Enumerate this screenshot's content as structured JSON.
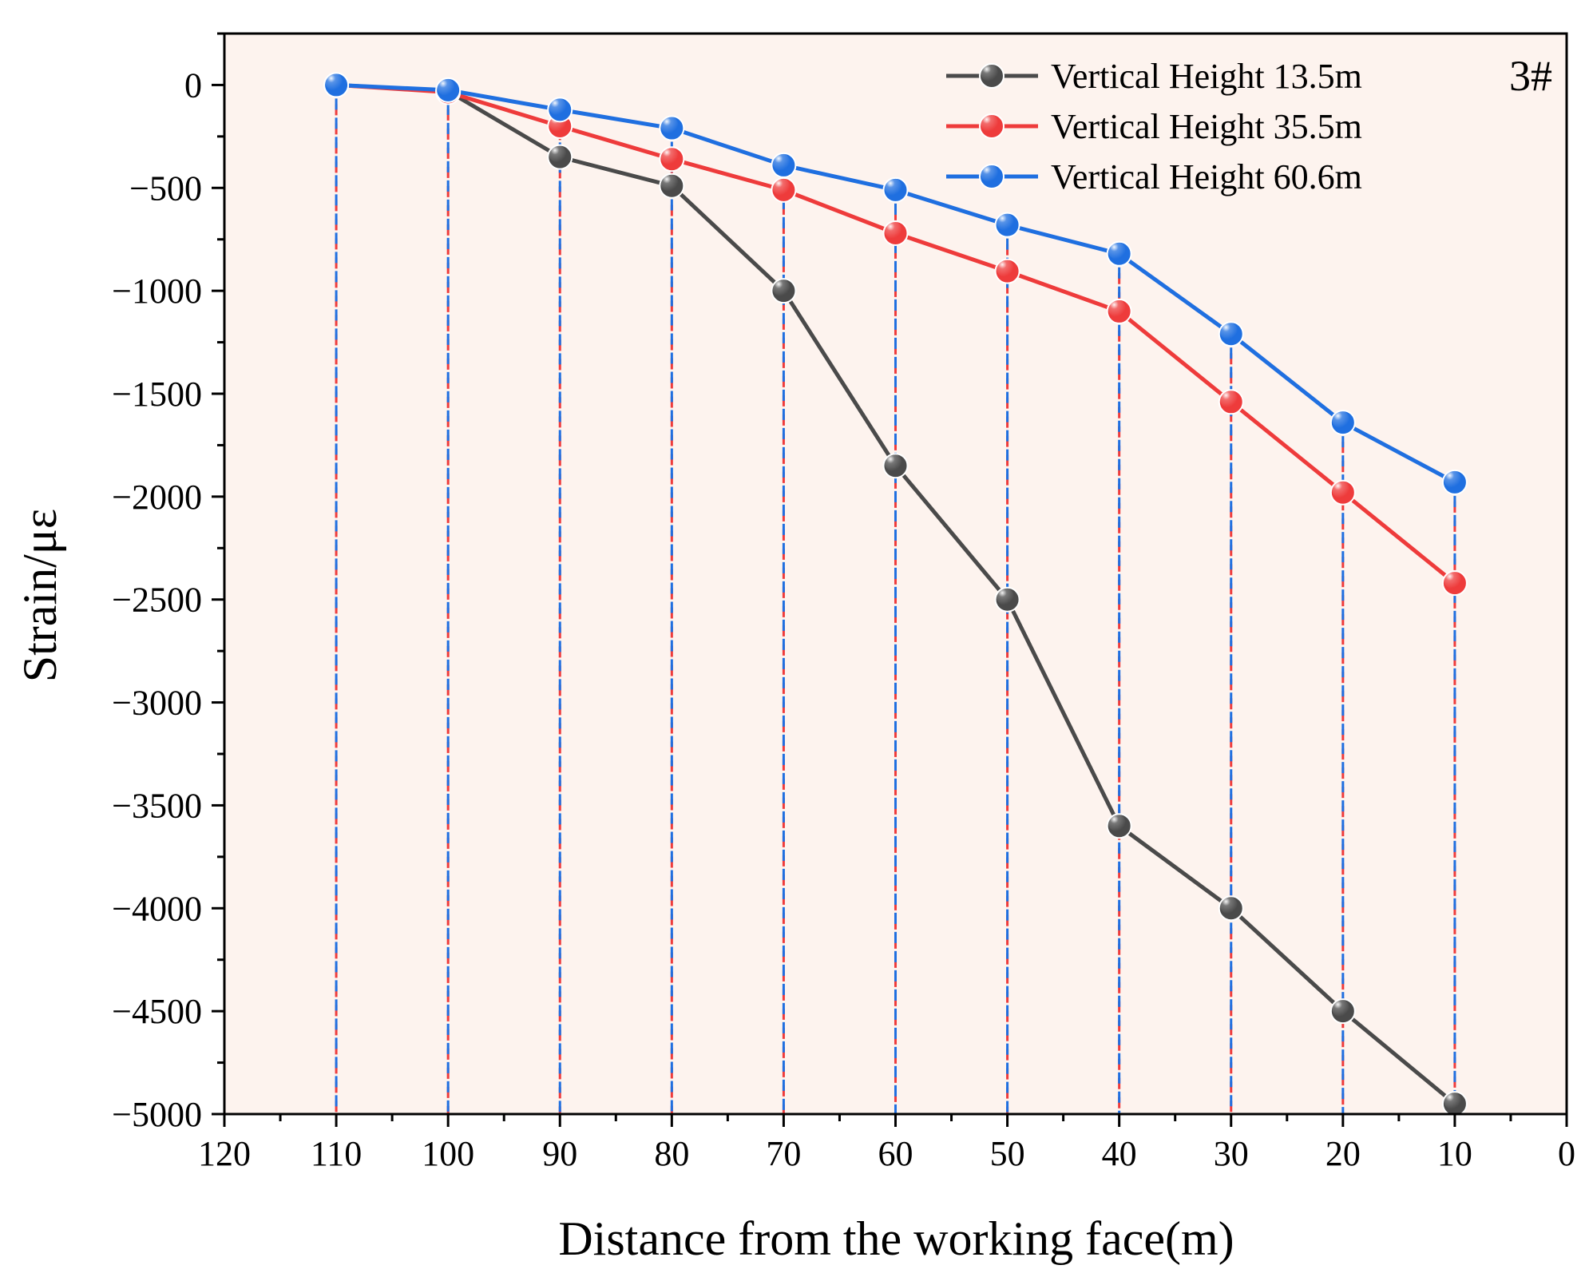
{
  "chart_data": {
    "type": "line",
    "title": "",
    "panel_label": "3#",
    "xlabel": "Distance from the working face(m)",
    "ylabel": "Strain/με",
    "xlim": [
      120,
      0
    ],
    "ylim": [
      -5000,
      250
    ],
    "x_ticks": [
      120,
      110,
      100,
      90,
      80,
      70,
      60,
      50,
      40,
      30,
      20,
      10,
      0
    ],
    "y_ticks": [
      0,
      -500,
      -1000,
      -1500,
      -2000,
      -2500,
      -3000,
      -3500,
      -4000,
      -4500,
      -5000
    ],
    "x_tick_labels": [
      "120",
      "110",
      "100",
      "90",
      "80",
      "70",
      "60",
      "50",
      "40",
      "30",
      "20",
      "10",
      "0"
    ],
    "y_tick_labels": [
      "0",
      "−500",
      "−1000",
      "−1500",
      "−2000",
      "−2500",
      "−3000",
      "−3500",
      "−4000",
      "−4500",
      "−5000"
    ],
    "background_color": "#fdf3ee",
    "legend_position": "top-right",
    "x": [
      110,
      100,
      90,
      80,
      70,
      60,
      50,
      40,
      30,
      20,
      10
    ],
    "series": [
      {
        "name": "Vertical Height 13.5m",
        "color": "#4a4a4a",
        "values": [
          0,
          -30,
          -350,
          -490,
          -1000,
          -1850,
          -2500,
          -3600,
          -4000,
          -4500,
          -4950
        ]
      },
      {
        "name": "Vertical Height 35.5m",
        "color": "#ee3b3b",
        "values": [
          0,
          -35,
          -200,
          -360,
          -510,
          -720,
          -905,
          -1100,
          -1540,
          -1980,
          -2420
        ]
      },
      {
        "name": "Vertical Height 60.6m",
        "color": "#1f6fe0",
        "values": [
          0,
          -25,
          -120,
          -210,
          -390,
          -510,
          -680,
          -820,
          -1210,
          -1640,
          -1930
        ]
      }
    ],
    "drop_lines": true,
    "drop_line_color": "#1f6fe0"
  }
}
